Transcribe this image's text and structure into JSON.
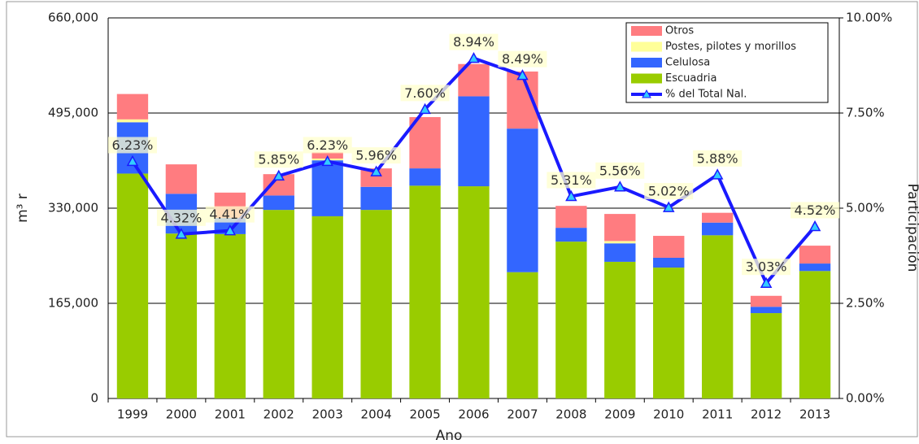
{
  "chart_data": {
    "type": "bar",
    "categories": [
      "1999",
      "2000",
      "2001",
      "2002",
      "2003",
      "2004",
      "2005",
      "2006",
      "2007",
      "2008",
      "2009",
      "2010",
      "2011",
      "2012",
      "2013"
    ],
    "x_label": "Ano",
    "y_label": "m³ r",
    "y2_label": "Participación",
    "ylim": [
      0,
      660000
    ],
    "yticks": [
      0,
      {
        "value": 165000,
        "label": "165,000"
      },
      {
        "value": 330000,
        "label": "330,000"
      },
      {
        "value": 495000,
        "label": "495,000"
      },
      {
        "value": 660000,
        "label": "660,000"
      }
    ],
    "y2lim": [
      0,
      10
    ],
    "y2ticks": [
      {
        "value": 0,
        "label": "0.00%"
      },
      {
        "value": 2.5,
        "label": "2.50%"
      },
      {
        "value": 5,
        "label": "5.00%"
      },
      {
        "value": 7.5,
        "label": "7.50%"
      },
      {
        "value": 10,
        "label": "10.00%"
      }
    ],
    "grid": true,
    "stacked": true,
    "legend": "upper right",
    "series": [
      {
        "name": "Escuadria",
        "color": "#99cc00",
        "values": [
          390000,
          286000,
          285000,
          327000,
          316000,
          327000,
          369000,
          368000,
          219000,
          272000,
          237000,
          227000,
          283000,
          148000,
          221000
        ]
      },
      {
        "name": "Celulosa",
        "color": "#3366ff",
        "values": [
          89000,
          69000,
          28000,
          25000,
          97000,
          40000,
          30000,
          156000,
          249000,
          24000,
          32000,
          17000,
          22000,
          11000,
          13000
        ]
      },
      {
        "name": "Postes, pilotes y morillos",
        "color": "#ffff99",
        "values": [
          5000,
          0,
          0,
          0,
          3000,
          0,
          0,
          0,
          0,
          0,
          4000,
          0,
          0,
          0,
          0
        ]
      },
      {
        "name": "Otros",
        "color": "#ff7c80",
        "values": [
          44000,
          51000,
          44000,
          37000,
          11000,
          32000,
          89000,
          56000,
          99000,
          38000,
          47000,
          38000,
          17000,
          19000,
          31000
        ]
      },
      {
        "name": "% del Total Nal.",
        "type": "line",
        "axis": "y2",
        "color": "#1a1aff",
        "marker_color": "#33ccff",
        "values": [
          6.23,
          4.32,
          4.41,
          5.85,
          6.23,
          5.96,
          7.6,
          8.94,
          8.49,
          5.31,
          5.56,
          5.02,
          5.88,
          3.03,
          4.52
        ],
        "value_labels": [
          "6.23%",
          "4.32%",
          "4.41%",
          "5.85%",
          "6.23%",
          "5.96%",
          "7.60%",
          "8.94%",
          "8.49%",
          "5.31%",
          "5.56%",
          "5.02%",
          "5.88%",
          "3.03%",
          "4.52%"
        ]
      }
    ]
  }
}
